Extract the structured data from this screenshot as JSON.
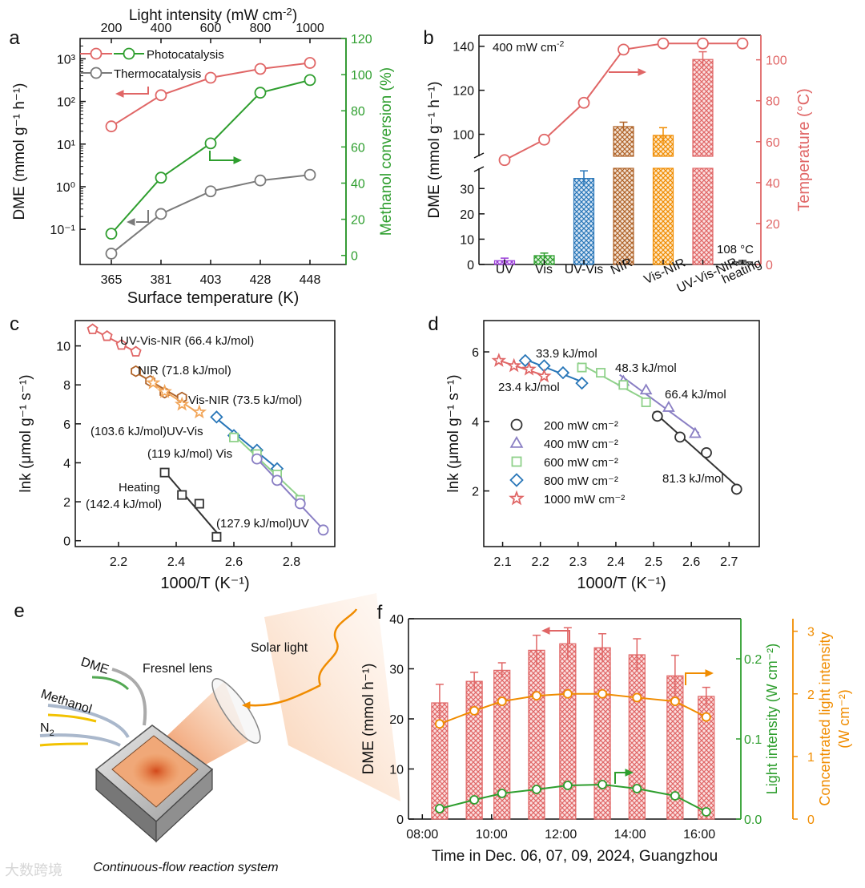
{
  "watermark": "大数跨境",
  "colors": {
    "red": "#e06666",
    "green": "#2e9e2e",
    "gray": "#7a7a7a",
    "orange": "#f08c00",
    "purple": "#9b3fd8",
    "blue": "#2876b8",
    "brown": "#b0642a",
    "lightgreen": "#8fd18a",
    "lavender": "#8a7fc4",
    "black": "#333333"
  },
  "chart_data": [
    {
      "panel": "a",
      "type": "line",
      "x": [
        365,
        381,
        403,
        428,
        448
      ],
      "xlabel": "Surface temperature (K)",
      "top_axis": {
        "label_pre": "Light intensity (mW cm",
        "label_sup": "-2",
        "label_post": ")",
        "ticks": [
          200,
          400,
          600,
          800,
          1000
        ]
      },
      "ylabel": "DME (mmol g⁻¹ h⁻¹)",
      "yscale": "log",
      "ylim": [
        0.015,
        3000
      ],
      "y_ticks": [
        "10⁻¹",
        "10⁰",
        "10¹",
        "10²",
        "10³"
      ],
      "y2label": "Methanol conversion (%)",
      "y2lim": [
        -5,
        120
      ],
      "y2_ticks": [
        0,
        20,
        40,
        60,
        80,
        100,
        120
      ],
      "series": [
        {
          "name": "Photocatalysis",
          "axis": "left",
          "values": [
            26,
            140,
            360,
            580,
            800
          ]
        },
        {
          "name": "Thermocatalysis",
          "axis": "left",
          "values": [
            0.027,
            0.23,
            0.78,
            1.4,
            1.9
          ]
        },
        {
          "axis": "right",
          "values": [
            12,
            43,
            62,
            90,
            97
          ]
        }
      ]
    },
    {
      "panel": "b",
      "type": "bar",
      "annotation_pre": "400 mW cm",
      "annotation_sup": "-2",
      "categories": [
        "UV",
        "Vis",
        "UV-Vis",
        "NIR",
        "Vis-NIR",
        "UV-Vis-NIR",
        "heating"
      ],
      "values": [
        1.5,
        3.5,
        34,
        103.5,
        99.5,
        134,
        1.0
      ],
      "errors": [
        1.0,
        1.0,
        3.0,
        2.0,
        3.5,
        3.5,
        0.6
      ],
      "ylabel": "DME (mmol g⁻¹ h⁻¹)",
      "y_break": [
        38,
        90
      ],
      "y_ticks_low": [
        0,
        10,
        20,
        30
      ],
      "y_ticks_high": [
        100,
        120,
        140
      ],
      "y2label": "Temperature (°C)",
      "y2lim": [
        0,
        112
      ],
      "y2_ticks": [
        0,
        20,
        40,
        60,
        80,
        100
      ],
      "temperature": [
        51,
        61,
        79,
        105,
        108,
        108,
        108
      ],
      "heating_label": "108 °C"
    },
    {
      "panel": "c",
      "type": "scatter",
      "xlabel": "1000/T (K⁻¹)",
      "ylabel": "lnk (μmol g⁻¹ s⁻¹)",
      "xlim": [
        2.05,
        2.95
      ],
      "ylim": [
        -0.3,
        11.3
      ],
      "x_ticks": [
        2.2,
        2.4,
        2.6,
        2.8
      ],
      "y_ticks": [
        0,
        2,
        4,
        6,
        8,
        10
      ],
      "series": [
        {
          "label": "UV-Vis-NIR (66.4 kJ/mol)",
          "x": [
            2.11,
            2.16,
            2.21,
            2.26
          ],
          "y": [
            10.85,
            10.5,
            10.05,
            9.7
          ]
        },
        {
          "label": "NIR (71.8 kJ/mol)",
          "x": [
            2.26,
            2.31,
            2.36,
            2.42
          ],
          "y": [
            8.7,
            8.2,
            7.6,
            7.35
          ]
        },
        {
          "label": "Vis-NIR (73.5 kJ/mol)",
          "x": [
            2.32,
            2.36,
            2.42,
            2.48
          ],
          "y": [
            8.1,
            7.65,
            7.0,
            6.6
          ]
        },
        {
          "label": "(103.6 kJ/mol)UV-Vis",
          "x": [
            2.54,
            2.6,
            2.68,
            2.75
          ],
          "y": [
            6.35,
            5.4,
            4.65,
            3.7
          ]
        },
        {
          "label": "(119 kJ/mol) Vis",
          "x": [
            2.6,
            2.68,
            2.75,
            2.83
          ],
          "y": [
            5.3,
            4.45,
            3.4,
            2.1
          ]
        },
        {
          "label": "(127.9 kJ/mol)UV",
          "x": [
            2.68,
            2.75,
            2.83,
            2.91
          ],
          "y": [
            4.2,
            3.1,
            1.9,
            0.55
          ]
        },
        {
          "label_lines": [
            "Heating",
            "(142.4 kJ/mol)"
          ],
          "x": [
            2.36,
            2.42,
            2.48,
            2.54
          ],
          "y": [
            3.5,
            2.35,
            1.9,
            0.2
          ]
        }
      ]
    },
    {
      "panel": "d",
      "type": "scatter",
      "xlabel": "1000/T (K⁻¹)",
      "ylabel": "lnk (μmol g⁻¹ s⁻¹)",
      "xlim": [
        2.05,
        2.78
      ],
      "ylim": [
        0.4,
        6.9
      ],
      "x_ticks": [
        2.1,
        2.2,
        2.3,
        2.4,
        2.5,
        2.6,
        2.7
      ],
      "y_ticks": [
        2,
        4,
        6
      ],
      "legend": [
        "200 mW cm⁻²",
        "400 mW cm⁻²",
        "600 mW cm⁻²",
        "800 mW cm⁻²",
        "1000 mW cm⁻²"
      ],
      "series": [
        {
          "name": "200 mW cm⁻²",
          "label": "81.3 kJ/mol",
          "x": [
            2.51,
            2.57,
            2.64,
            2.72
          ],
          "y": [
            4.15,
            3.55,
            3.1,
            2.05
          ]
        },
        {
          "name": "400 mW cm⁻²",
          "label": "66.4 kJ/mol",
          "x": [
            2.42,
            2.48,
            2.54,
            2.61
          ],
          "y": [
            5.15,
            4.9,
            4.4,
            3.65
          ]
        },
        {
          "name": "600 mW cm⁻²",
          "label": "48.3 kJ/mol",
          "x": [
            2.31,
            2.36,
            2.42,
            2.48
          ],
          "y": [
            5.55,
            5.4,
            5.05,
            4.55
          ]
        },
        {
          "name": "800 mW cm⁻²",
          "label": "33.9 kJ/mol",
          "x": [
            2.16,
            2.21,
            2.26,
            2.31
          ],
          "y": [
            5.75,
            5.6,
            5.4,
            5.1
          ]
        },
        {
          "name": "1000 mW cm⁻²",
          "label": "23.4 kJ/mol",
          "x": [
            2.09,
            2.13,
            2.17,
            2.21
          ],
          "y": [
            5.75,
            5.6,
            5.5,
            5.3
          ]
        }
      ]
    },
    {
      "panel": "f",
      "type": "bar",
      "xlabel": "Time in Dec. 06, 07, 09, 2024, Guangzhou",
      "x_ticks": [
        "08:00",
        "10:00",
        "12:00",
        "14:00",
        "16:00"
      ],
      "x_tick_hours": [
        8,
        10,
        12,
        14,
        16
      ],
      "xlim": [
        7.6,
        17.2
      ],
      "hours": [
        8.5,
        9.5,
        10.3,
        11.3,
        12.2,
        13.2,
        14.2,
        15.3,
        16.2
      ],
      "dme": [
        23.2,
        27.5,
        29.7,
        33.7,
        35.0,
        34.2,
        32.8,
        28.6,
        24.5
      ],
      "dme_err": [
        3.7,
        1.8,
        1.5,
        3.0,
        3.2,
        2.8,
        3.2,
        4.1,
        1.8
      ],
      "ylabel": "DME (mmol h⁻¹)",
      "ylim": [
        0,
        40
      ],
      "y_ticks": [
        0,
        10,
        20,
        30,
        40
      ],
      "light_intensity": [
        0.013,
        0.024,
        0.032,
        0.037,
        0.042,
        0.043,
        0.038,
        0.029,
        0.009
      ],
      "y2label": "Light intensity (W cm⁻²)",
      "y2lim": [
        0,
        0.25
      ],
      "y2_ticks": [
        "0.0",
        "0.1",
        "0.2"
      ],
      "concentrated_intensity": [
        1.52,
        1.73,
        1.88,
        1.97,
        2.0,
        2.0,
        1.94,
        1.88,
        1.63
      ],
      "y3label_lines": [
        "Concentrated light intensity",
        "(W cm⁻²)"
      ],
      "y3lim": [
        0,
        3.2
      ],
      "y3_ticks": [
        0,
        1,
        2,
        3
      ]
    }
  ],
  "panels": {
    "a": "a",
    "b": "b",
    "c": "c",
    "d": "d",
    "e": "e",
    "f": "f"
  },
  "panel_e": {
    "labels": {
      "dme": "DME",
      "methanol": "Methanol",
      "n2": "N",
      "n2_sub": "2",
      "lens": "Fresnel lens",
      "solar": "Solar light",
      "caption": "Continuous-flow reaction system"
    }
  }
}
